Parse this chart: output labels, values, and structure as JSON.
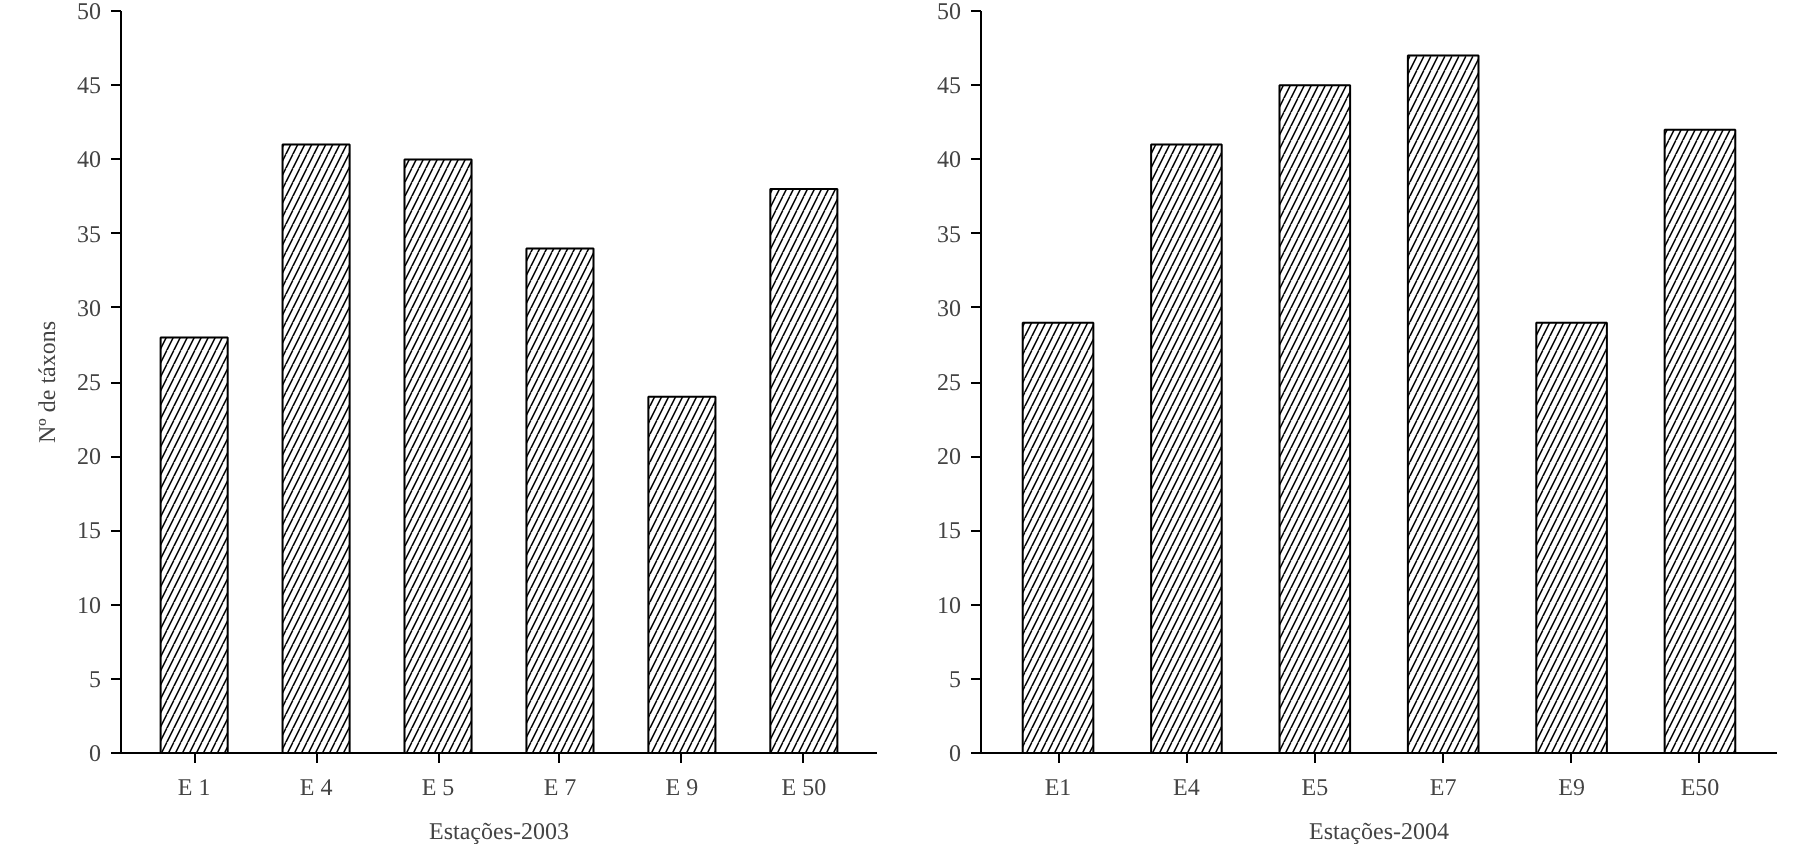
{
  "chart_data": [
    {
      "type": "bar",
      "xlabel": "Estações-2003",
      "ylabel": "Nº de táxons",
      "categories": [
        "E 1",
        "E 4",
        "E 5",
        "E 7",
        "E 9",
        "E 50"
      ],
      "series": [
        {
          "color": "#ffffff",
          "values": [
            28,
            41,
            40,
            34,
            24,
            38
          ]
        }
      ],
      "ylim": [
        0,
        50
      ],
      "yticks": [
        0,
        5,
        10,
        15,
        20,
        25,
        30,
        35,
        40,
        45,
        50
      ]
    },
    {
      "type": "bar",
      "xlabel": "Estações-2004",
      "categories": [
        "E1",
        "E4",
        "E5",
        "E7",
        "E9",
        "E50"
      ],
      "series": [
        {
          "color": "#ffffff",
          "values": [
            29,
            41,
            45,
            47,
            29,
            42
          ]
        }
      ],
      "ylim": [
        0,
        50
      ],
      "yticks": [
        0,
        5,
        10,
        15,
        20,
        25,
        30,
        35,
        40,
        45,
        50
      ]
    }
  ]
}
